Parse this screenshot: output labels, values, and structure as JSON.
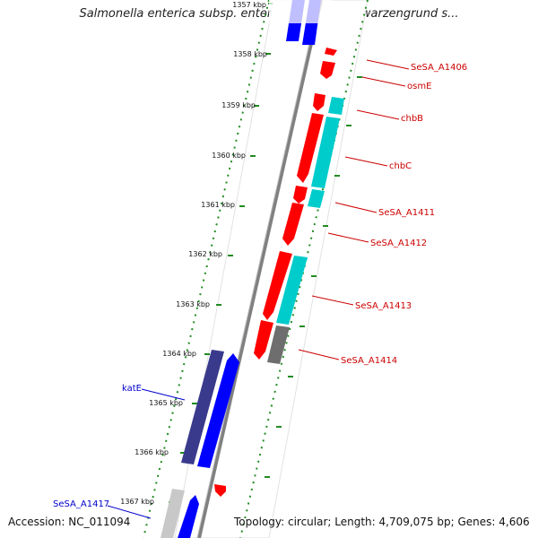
{
  "title": "Salmonella enterica subsp. enterica serovar Schwarzengrund s...",
  "footer": {
    "accession": "Accession: NC_011094",
    "topology": "Topology: circular; Length: 4,709,075 bp; Genes: 4,606"
  },
  "ticks": [
    "1357 kbp",
    "1358 kbp",
    "1359 kbp",
    "1360 kbp",
    "1361 kbp",
    "1362 kbp",
    "1363 kbp",
    "1364 kbp",
    "1365 kbp",
    "1366 kbp",
    "1367 kbp"
  ],
  "gene_labels_right": [
    "SeSA_A1406",
    "osmE",
    "chbB",
    "chbC",
    "SeSA_A1411",
    "SeSA_A1412",
    "SeSA_A1413",
    "SeSA_A1414"
  ],
  "gene_labels_left": [
    "katE",
    "SeSA_A1417"
  ],
  "colors": {
    "forward_gene": "#ff0000",
    "reverse_gene": "#0000ff",
    "cds_cyan": "#00cccc",
    "cds_navy": "#3a3a8c",
    "cds_gray": "#6e6e6e",
    "backbone": "#808080",
    "tick_green": "#228b22",
    "label_red": "#cc0000",
    "label_blue": "#0000cc"
  }
}
